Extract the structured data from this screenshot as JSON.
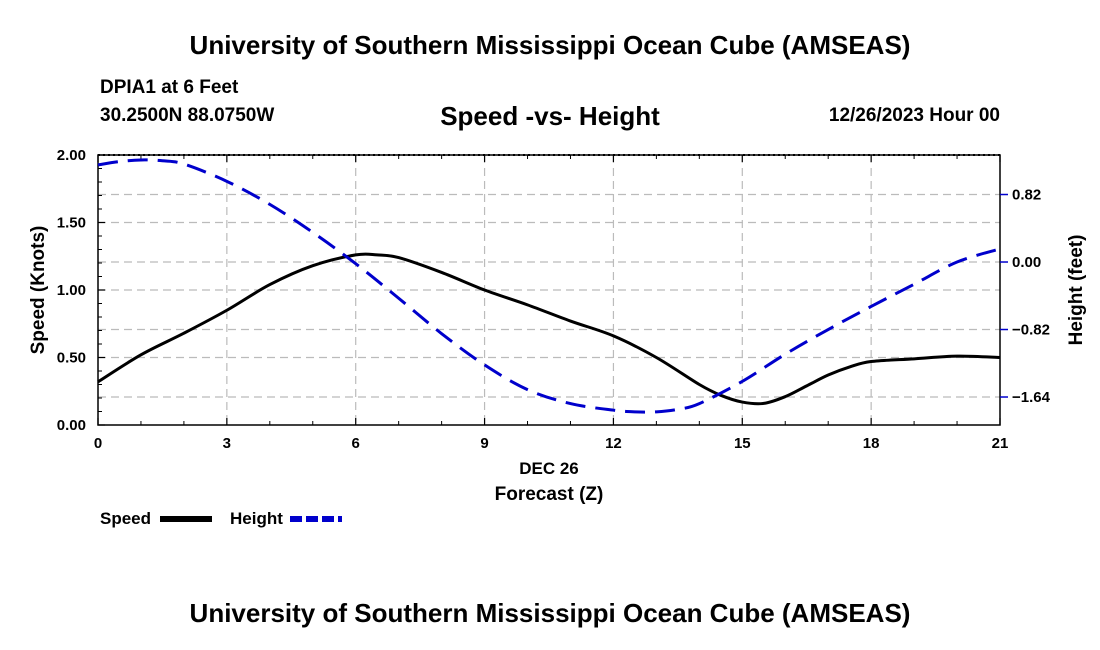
{
  "header": {
    "title": "University of Southern Mississippi Ocean Cube (AMSEAS)",
    "station": "DPIA1 at 6 Feet",
    "coordinates": "30.2500N  88.0750W",
    "chart_title": "Speed -vs- Height",
    "datetime": "12/26/2023 Hour 00"
  },
  "footer": {
    "title": "University of Southern Mississippi Ocean Cube (AMSEAS)"
  },
  "legend": {
    "speed_label": "Speed",
    "height_label": "Height"
  },
  "colors": {
    "speed": "#000000",
    "height": "#0000cc",
    "grid": "#bbbbbb"
  },
  "chart_data": {
    "type": "line",
    "title": "Speed -vs- Height",
    "xlabel_date": "DEC 26",
    "xlabel": "Forecast (Z)",
    "ylabel_left": "Speed (Knots)",
    "ylabel_right": "Height (feet)",
    "xlim": [
      0,
      21
    ],
    "ylim_left": [
      0,
      2.0
    ],
    "ylim_right": [
      -1.98,
      1.3
    ],
    "x_ticks": [
      0,
      3,
      6,
      9,
      12,
      15,
      18,
      21
    ],
    "x_tick_labels": [
      "0",
      "3",
      "6",
      "9",
      "12",
      "15",
      "18",
      "21"
    ],
    "y_left_ticks": [
      0,
      0.5,
      1.0,
      1.5,
      2.0
    ],
    "y_left_tick_labels": [
      "0.00",
      "0.50",
      "1.00",
      "1.50",
      "2.00"
    ],
    "y_right_ticks": [
      0.82,
      0.0,
      -0.82,
      -1.64
    ],
    "y_right_tick_labels": [
      "0.82",
      "0.00",
      "−0.82",
      "−1.64"
    ],
    "grid": true,
    "series": [
      {
        "name": "Speed",
        "axis": "left",
        "style": "solid",
        "x": [
          0,
          1,
          2,
          3,
          4,
          5,
          6,
          6.5,
          7,
          8,
          9,
          10,
          11,
          12,
          13,
          14,
          14.5,
          15,
          15.5,
          16,
          16.5,
          17,
          17.5,
          18,
          19,
          20,
          21
        ],
        "values": [
          0.32,
          0.52,
          0.68,
          0.85,
          1.04,
          1.18,
          1.26,
          1.26,
          1.24,
          1.13,
          1.0,
          0.89,
          0.77,
          0.66,
          0.5,
          0.3,
          0.22,
          0.17,
          0.16,
          0.21,
          0.29,
          0.37,
          0.43,
          0.47,
          0.49,
          0.51,
          0.5
        ]
      },
      {
        "name": "Height",
        "axis": "right",
        "style": "dashed",
        "x": [
          0,
          0.5,
          1,
          1.5,
          2,
          3,
          4,
          5,
          6,
          7,
          8,
          9,
          10,
          11,
          12,
          12.5,
          13,
          13.5,
          14,
          15,
          16,
          17,
          18,
          19,
          20,
          21
        ],
        "values": [
          1.18,
          1.22,
          1.24,
          1.23,
          1.19,
          0.98,
          0.7,
          0.36,
          -0.02,
          -0.44,
          -0.87,
          -1.25,
          -1.55,
          -1.72,
          -1.8,
          -1.82,
          -1.82,
          -1.79,
          -1.72,
          -1.45,
          -1.12,
          -0.82,
          -0.54,
          -0.27,
          0.0,
          0.16
        ]
      }
    ]
  }
}
